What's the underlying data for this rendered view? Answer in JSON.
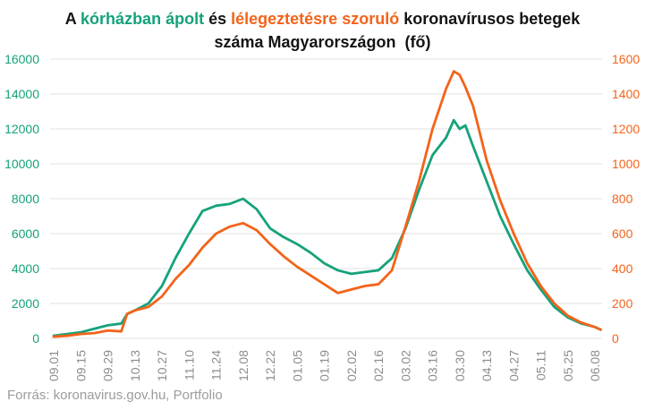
{
  "chart_data": {
    "type": "line",
    "title": {
      "prefix": "A",
      "conj": "és",
      "suffix": "koronavírusos betegek",
      "line2": "száma Magyarországon  (fő)"
    },
    "source": "Forrás: koronavirus.gov.hu, Portfolio",
    "x_tick_labels": [
      "09.01",
      "09.15",
      "09.29",
      "10.13",
      "10.27",
      "11.10",
      "11.24",
      "12.08",
      "12.22",
      "01.05",
      "01.19",
      "02.02",
      "02.16",
      "03.02",
      "03.16",
      "03.30",
      "04.13",
      "04.27",
      "05.11",
      "05.25",
      "06.08"
    ],
    "y_left": {
      "range": [
        0,
        16000
      ],
      "ticks": [
        0,
        2000,
        4000,
        6000,
        8000,
        10000,
        12000,
        14000,
        16000
      ]
    },
    "y_right": {
      "range": [
        0,
        1600
      ],
      "ticks": [
        0,
        200,
        400,
        600,
        800,
        1000,
        1200,
        1400,
        1600
      ]
    },
    "grid": true,
    "grid_color": "#e1e1e1",
    "x_tick_color": "#8c8c8c",
    "x": [
      "09.01",
      "09.08",
      "09.15",
      "09.22",
      "09.29",
      "10.06",
      "10.09",
      "10.13",
      "10.20",
      "10.27",
      "11.03",
      "11.10",
      "11.17",
      "11.24",
      "12.01",
      "12.08",
      "12.15",
      "12.22",
      "12.29",
      "01.05",
      "01.12",
      "01.19",
      "01.26",
      "02.02",
      "02.09",
      "02.16",
      "02.23",
      "03.02",
      "03.09",
      "03.16",
      "03.23",
      "03.27",
      "03.30",
      "04.02",
      "04.06",
      "04.13",
      "04.20",
      "04.27",
      "05.04",
      "05.11",
      "05.18",
      "05.25",
      "06.01",
      "06.08",
      "06.11"
    ],
    "series": [
      {
        "name": "kórházban ápolt",
        "axis": "left",
        "color": "#15a27b",
        "values": [
          150,
          250,
          350,
          550,
          750,
          850,
          1400,
          1600,
          2000,
          3000,
          4600,
          6000,
          7300,
          7600,
          7700,
          8000,
          7400,
          6300,
          5800,
          5400,
          4900,
          4300,
          3900,
          3700,
          3800,
          3900,
          4600,
          6300,
          8500,
          10500,
          11500,
          12500,
          12000,
          12200,
          11000,
          9000,
          7000,
          5400,
          3900,
          2800,
          1800,
          1200,
          850,
          650,
          500
        ]
      },
      {
        "name": "lélegeztetésre szoruló",
        "axis": "right",
        "color": "#f3631a",
        "values": [
          10,
          15,
          25,
          30,
          45,
          40,
          140,
          160,
          180,
          240,
          340,
          420,
          520,
          600,
          640,
          660,
          620,
          540,
          470,
          410,
          360,
          310,
          260,
          280,
          300,
          310,
          390,
          640,
          900,
          1200,
          1430,
          1530,
          1510,
          1440,
          1330,
          1020,
          790,
          600,
          430,
          300,
          200,
          130,
          90,
          65,
          50
        ]
      }
    ]
  }
}
